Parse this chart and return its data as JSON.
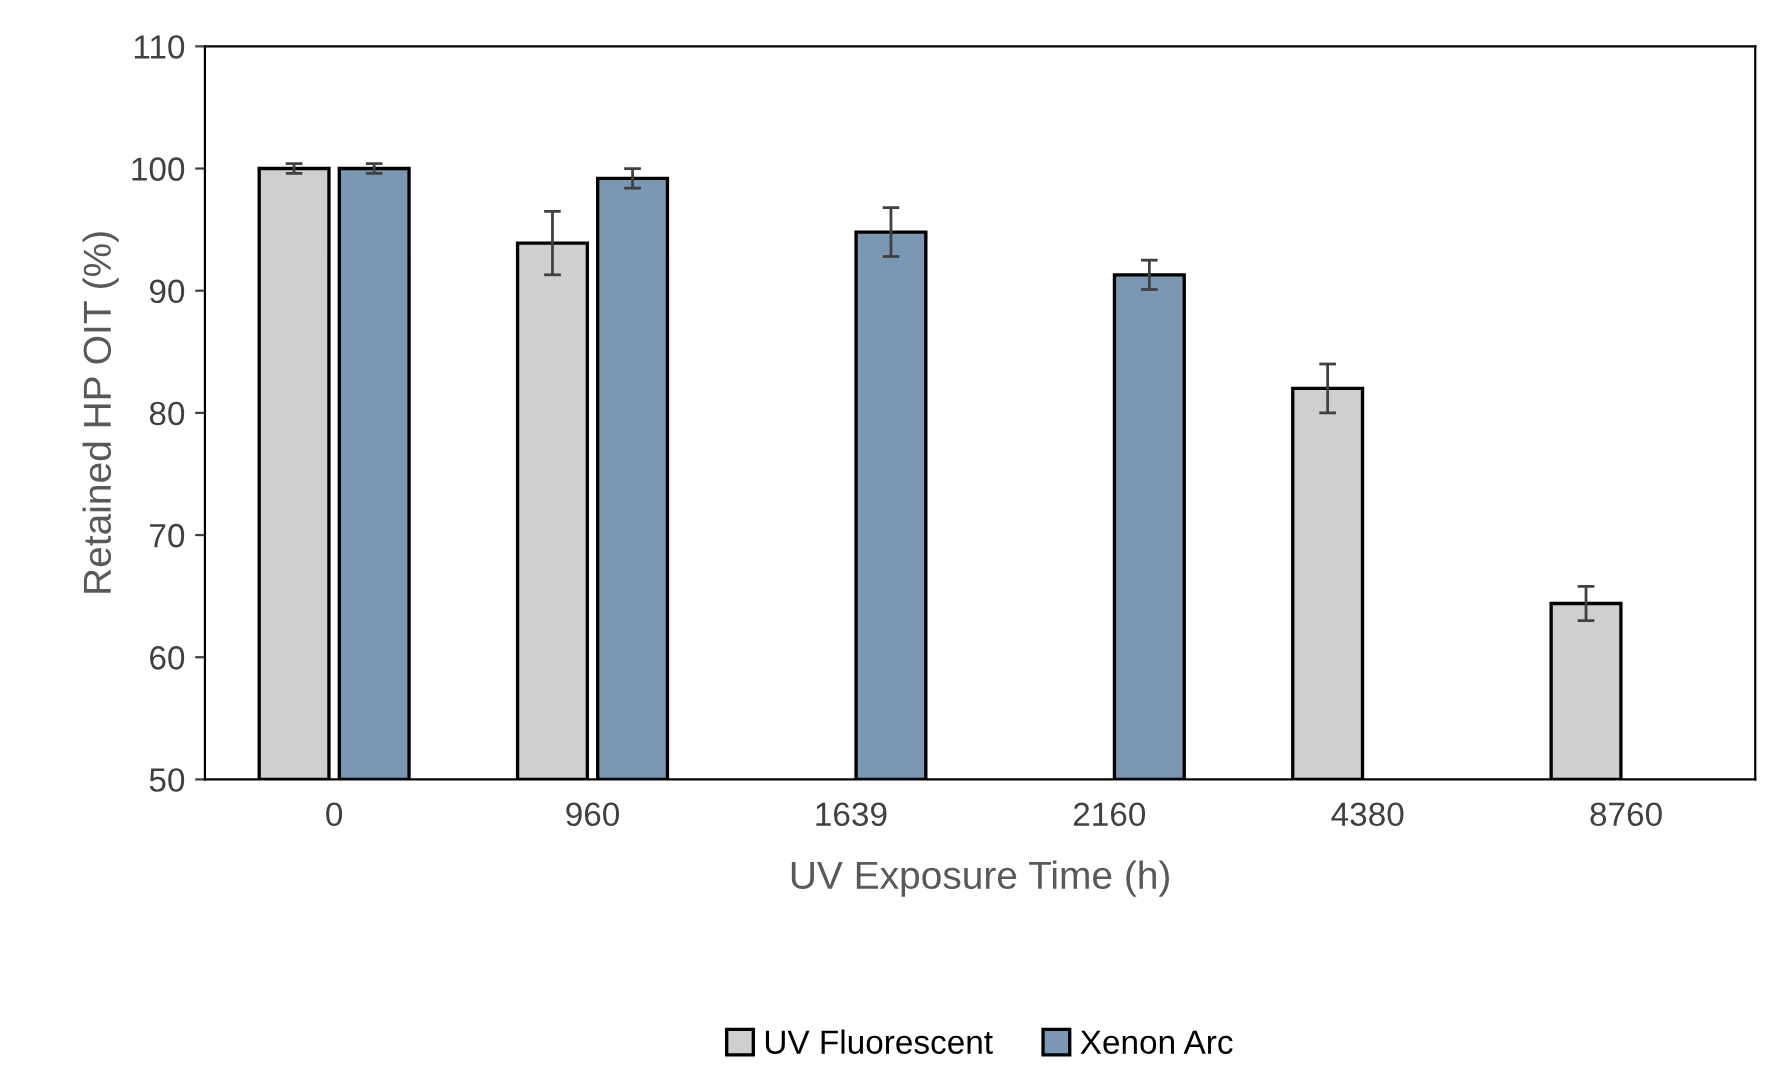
{
  "chart_data": {
    "type": "bar",
    "xlabel": "UV Exposure Time (h)",
    "ylabel": "Retained HP OIT (%)",
    "categories": [
      "0",
      "960",
      "1639",
      "2160",
      "4380",
      "8760"
    ],
    "series": [
      {
        "name": "UV Fluorescent",
        "color": "#d0cece",
        "values": [
          100,
          93.9,
          null,
          null,
          82,
          64.4
        ],
        "errors": [
          0.4,
          2.6,
          null,
          null,
          2,
          1.4
        ]
      },
      {
        "name": "Xenon Arc",
        "color": "#7a97b3",
        "values": [
          100,
          99.2,
          94.8,
          91.3,
          null,
          null
        ],
        "errors": [
          0.4,
          0.8,
          2,
          1.2,
          null,
          null
        ]
      }
    ],
    "ylim": [
      50,
      110
    ],
    "yticks": [
      50,
      60,
      70,
      80,
      90,
      100,
      110
    ],
    "grid": false,
    "legend": "bottom"
  }
}
